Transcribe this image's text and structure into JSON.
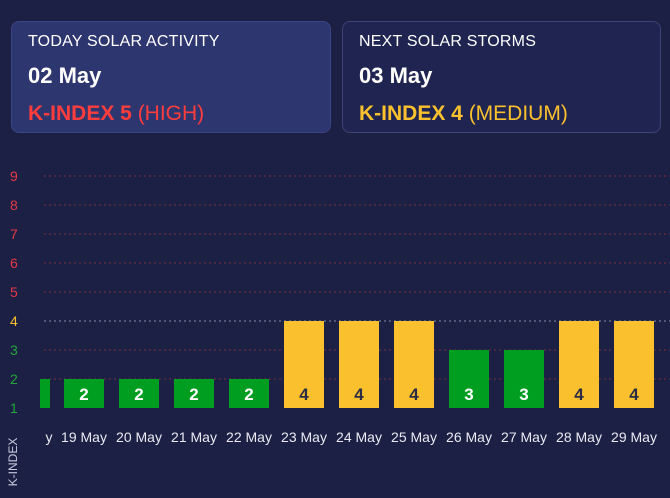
{
  "today": {
    "kicker": "TODAY SOLAR ACTIVITY",
    "date": "02 May",
    "k_label": "K-INDEX 5",
    "k_level": " (HIGH)"
  },
  "next": {
    "kicker": "NEXT SOLAR STORMS",
    "date": "03 May",
    "k_label": "K-INDEX 4",
    "k_level": " (MEDIUM)"
  },
  "colors": {
    "background": "#1c2044",
    "high": "#ff3d3d",
    "medium": "#fbc02d",
    "low": "#009e20",
    "lowTick": "#22a83a",
    "midTick": "#fbc02d",
    "highTick": "#e53946"
  },
  "chart_data": {
    "type": "bar",
    "ylabel": "K-INDEX",
    "ylim": [
      1,
      9
    ],
    "yticks": [
      1,
      2,
      3,
      4,
      5,
      6,
      7,
      8,
      9
    ],
    "categories": [
      "y",
      "19 May",
      "20 May",
      "21 May",
      "22 May",
      "23 May",
      "24 May",
      "25 May",
      "26 May",
      "27 May",
      "28 May",
      "29 May"
    ],
    "values": [
      2,
      2,
      2,
      2,
      2,
      4,
      4,
      4,
      3,
      3,
      4,
      4
    ],
    "grid": "dotted horizontal"
  }
}
